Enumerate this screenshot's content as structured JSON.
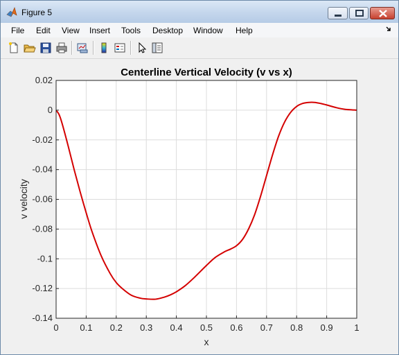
{
  "window": {
    "title": "Figure 5",
    "controls": [
      "minimize",
      "maximize",
      "close"
    ]
  },
  "menubar": {
    "items": [
      "File",
      "Edit",
      "View",
      "Insert",
      "Tools",
      "Desktop",
      "Window",
      "Help"
    ]
  },
  "toolbar": {
    "icons": [
      "new-figure-icon",
      "open-file-icon",
      "save-icon",
      "print-icon",
      "link-plot-icon",
      "insert-colorbar-icon",
      "insert-legend-icon",
      "pointer-icon",
      "property-inspector-icon"
    ]
  },
  "colors": {
    "line": "#d40000",
    "accent": "#0072bd"
  },
  "chart_data": {
    "type": "line",
    "title": "Centerline Vertical Velocity (v vs x)",
    "xlabel": "x",
    "ylabel": "v velocity",
    "xlim": [
      0,
      1
    ],
    "ylim": [
      -0.14,
      0.02
    ],
    "xticks": [
      0,
      0.1,
      0.2,
      0.3,
      0.4,
      0.5,
      0.6,
      0.7,
      0.8,
      0.9,
      1
    ],
    "xtick_labels": [
      "0",
      "0.1",
      "0.2",
      "0.3",
      "0.4",
      "0.5",
      "0.6",
      "0.7",
      "0.8",
      "0.9",
      "1"
    ],
    "yticks": [
      0.02,
      0,
      -0.02,
      -0.04,
      -0.06,
      -0.08,
      -0.1,
      -0.12,
      -0.14
    ],
    "ytick_labels": [
      "0.02",
      "0",
      "-0.02",
      "-0.04",
      "-0.06",
      "-0.08",
      "-0.1",
      "-0.12",
      "-0.14"
    ],
    "grid": true,
    "series": [
      {
        "x": [
          0,
          0.01,
          0.02,
          0.04,
          0.06,
          0.08,
          0.1,
          0.12,
          0.15,
          0.18,
          0.2,
          0.22,
          0.25,
          0.28,
          0.3,
          0.33,
          0.36,
          0.38,
          0.4,
          0.43,
          0.46,
          0.5,
          0.53,
          0.56,
          0.58,
          0.6,
          0.62,
          0.64,
          0.66,
          0.68,
          0.7,
          0.72,
          0.74,
          0.76,
          0.78,
          0.8,
          0.82,
          0.84,
          0.86,
          0.88,
          0.9,
          0.93,
          0.96,
          1.0
        ],
        "y": [
          0,
          -0.003,
          -0.009,
          -0.024,
          -0.04,
          -0.055,
          -0.069,
          -0.082,
          -0.098,
          -0.11,
          -0.116,
          -0.12,
          -0.1245,
          -0.1265,
          -0.127,
          -0.1272,
          -0.1258,
          -0.1243,
          -0.1222,
          -0.118,
          -0.1125,
          -0.1045,
          -0.099,
          -0.0953,
          -0.0935,
          -0.0912,
          -0.087,
          -0.08,
          -0.0705,
          -0.058,
          -0.044,
          -0.03,
          -0.0175,
          -0.008,
          -0.0015,
          0.0025,
          0.0045,
          0.0052,
          0.0052,
          0.0045,
          0.0035,
          0.0018,
          0.0006,
          0
        ]
      }
    ]
  }
}
